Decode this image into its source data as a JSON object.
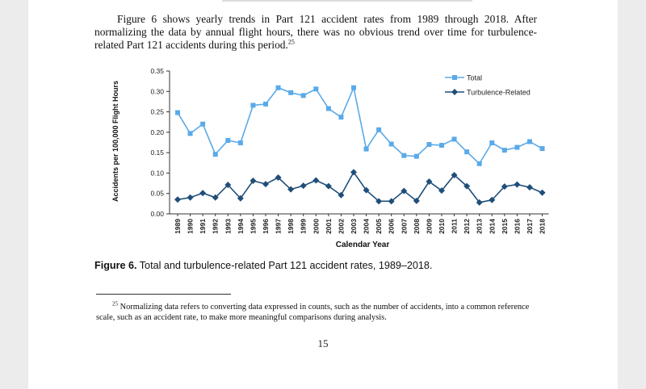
{
  "paragraph": {
    "text": "Figure 6 shows yearly trends in Part 121 accident rates from 1989 through 2018. After normalizing the data by annual flight hours, there was no obvious trend over time for turbulence-related Part 121 accidents during this period.",
    "footnote_ref": "25"
  },
  "chart_data": {
    "type": "line",
    "title": "",
    "xlabel": "Calendar Year",
    "ylabel": "Accidents per 100,000 Flight Hours",
    "ylim": [
      0,
      0.35
    ],
    "yticks": [
      "0.00",
      "0.05",
      "0.10",
      "0.15",
      "0.20",
      "0.25",
      "0.30",
      "0.35"
    ],
    "x": [
      "1989",
      "1990",
      "1991",
      "1992",
      "1993",
      "1994",
      "1995",
      "1996",
      "1997",
      "1998",
      "1999",
      "2000",
      "2001",
      "2002",
      "2003",
      "2004",
      "2005",
      "2006",
      "2007",
      "2008",
      "2009",
      "2010",
      "2011",
      "2012",
      "2013",
      "2014",
      "2015",
      "2016",
      "2017",
      "2018"
    ],
    "series": [
      {
        "name": "Total",
        "color": "#5aaae8",
        "marker": "square",
        "values": [
          0.248,
          0.197,
          0.22,
          0.146,
          0.18,
          0.174,
          0.266,
          0.269,
          0.309,
          0.297,
          0.29,
          0.306,
          0.258,
          0.237,
          0.309,
          0.159,
          0.206,
          0.171,
          0.143,
          0.141,
          0.17,
          0.168,
          0.183,
          0.152,
          0.123,
          0.174,
          0.156,
          0.163,
          0.177,
          0.16
        ]
      },
      {
        "name": "Turbulence-Related",
        "color": "#1f4e79",
        "marker": "diamond",
        "values": [
          0.035,
          0.04,
          0.051,
          0.04,
          0.071,
          0.038,
          0.081,
          0.073,
          0.089,
          0.06,
          0.069,
          0.082,
          0.068,
          0.046,
          0.102,
          0.058,
          0.031,
          0.031,
          0.056,
          0.032,
          0.079,
          0.057,
          0.095,
          0.068,
          0.028,
          0.034,
          0.067,
          0.072,
          0.065,
          0.052
        ]
      }
    ],
    "legend": "top-right",
    "grid": false
  },
  "caption": {
    "label": "Figure 6.",
    "text": "Total and turbulence-related Part 121 accident rates, 1989–2018."
  },
  "footnote": {
    "number": "25",
    "text": "Normalizing data refers to converting data expressed in counts, such as the number of accidents, into a common reference scale, such as an accident rate, to make more meaningful comparisons during analysis."
  },
  "page_number": "15"
}
